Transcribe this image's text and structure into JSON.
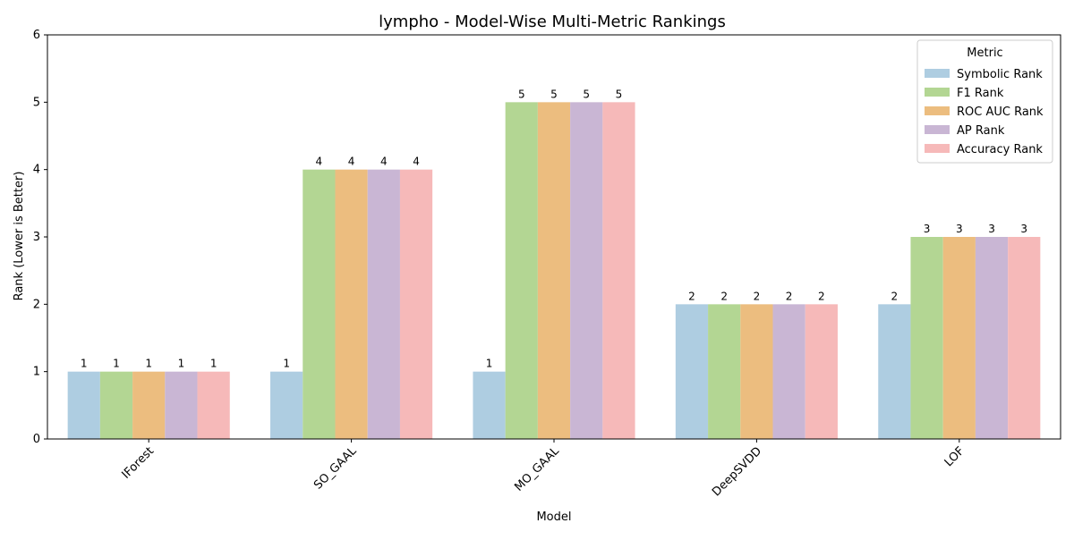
{
  "chart_data": {
    "type": "bar",
    "title": "lympho - Model-Wise Multi-Metric Rankings",
    "xlabel": "Model",
    "ylabel": "Rank (Lower is Better)",
    "ylim": [
      0,
      6
    ],
    "yticks": [
      "0",
      "1",
      "2",
      "3",
      "4",
      "5",
      "6"
    ],
    "categories": [
      "IForest",
      "SO_GAAL",
      "MO_GAAL",
      "DeepSVDD",
      "LOF"
    ],
    "legend": {
      "title": "Metric",
      "placement": "top-right"
    },
    "grid": false,
    "series": [
      {
        "name": "Symbolic Rank",
        "color": "#aecde1",
        "values": [
          1,
          1,
          1,
          2,
          2
        ]
      },
      {
        "name": "F1 Rank",
        "color": "#b3d693",
        "values": [
          1,
          4,
          5,
          2,
          3
        ]
      },
      {
        "name": "ROC AUC Rank",
        "color": "#ecbd7f",
        "values": [
          1,
          4,
          5,
          2,
          3
        ]
      },
      {
        "name": "AP Rank",
        "color": "#c9b6d4",
        "values": [
          1,
          4,
          5,
          2,
          3
        ]
      },
      {
        "name": "Accuracy Rank",
        "color": "#f6b9b9",
        "values": [
          1,
          4,
          5,
          2,
          3
        ]
      }
    ]
  }
}
